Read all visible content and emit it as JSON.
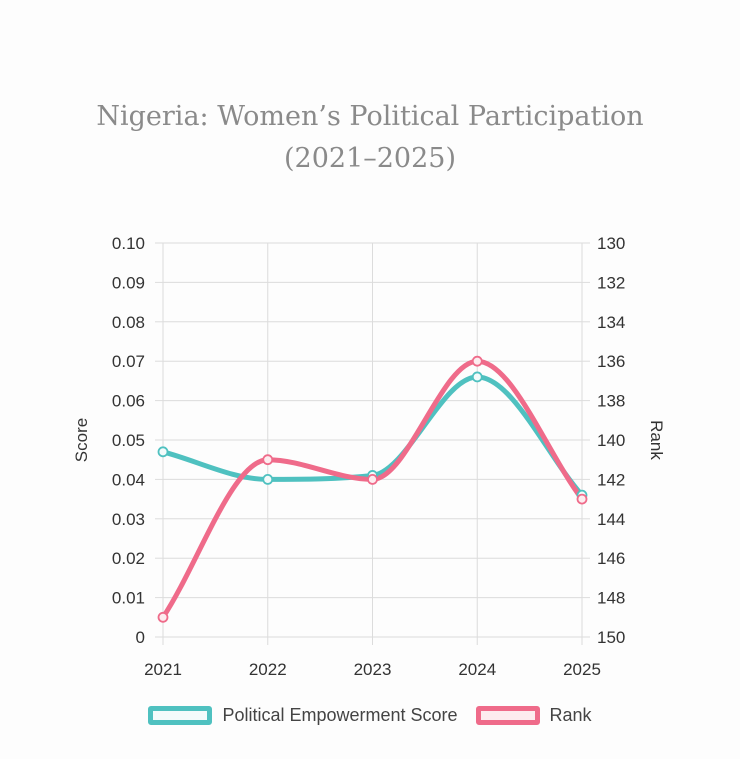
{
  "title_line1": "Nigeria: Women’s Political Participation",
  "title_line2": "(2021–2025)",
  "chart_data": {
    "type": "line",
    "categories": [
      "2021",
      "2022",
      "2023",
      "2024",
      "2025"
    ],
    "series": [
      {
        "name": "Political Empowerment Score",
        "axis": "left",
        "values": [
          0.047,
          0.04,
          0.041,
          0.066,
          0.036
        ],
        "color": "#4fc1c0",
        "fill": "#f3fbfb"
      },
      {
        "name": "Rank",
        "axis": "right",
        "values": [
          149,
          141,
          142,
          136,
          143
        ],
        "color": "#ef6b8a",
        "fill": "#fdecef"
      }
    ],
    "ylabel": "Score",
    "y2label": "Rank",
    "ylim": [
      0,
      0.1
    ],
    "y2lim": [
      150,
      130
    ],
    "yticks": [
      "0.10",
      "0.09",
      "0.08",
      "0.07",
      "0.06",
      "0.05",
      "0.04",
      "0.03",
      "0.02",
      "0.01",
      "0"
    ],
    "y2ticks": [
      "130",
      "132",
      "134",
      "136",
      "138",
      "140",
      "142",
      "144",
      "146",
      "148",
      "150"
    ],
    "grid": true,
    "legend_position": "bottom"
  }
}
